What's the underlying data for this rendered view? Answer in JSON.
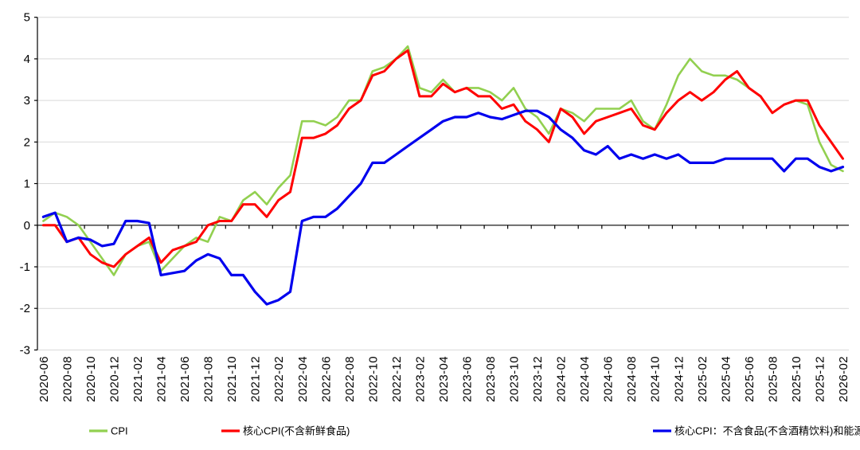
{
  "chart_data": {
    "type": "line",
    "title": "",
    "xlabel": "",
    "ylabel": "",
    "ylim": [
      -3,
      5
    ],
    "y_ticks": [
      5,
      4,
      3,
      2,
      1,
      0,
      -1,
      -2,
      -3
    ],
    "grid": true,
    "legend_position": "bottom",
    "grid_color": "#D9D9D9",
    "axis_color": "#000000",
    "categories": [
      "2020-06",
      "2020-07",
      "2020-08",
      "2020-09",
      "2020-10",
      "2020-11",
      "2020-12",
      "2021-01",
      "2021-02",
      "2021-03",
      "2021-04",
      "2021-05",
      "2021-06",
      "2021-07",
      "2021-08",
      "2021-09",
      "2021-10",
      "2021-11",
      "2021-12",
      "2022-01",
      "2022-02",
      "2022-03",
      "2022-04",
      "2022-05",
      "2022-06",
      "2022-07",
      "2022-08",
      "2022-09",
      "2022-10",
      "2022-11",
      "2022-12",
      "2023-01",
      "2023-02",
      "2023-03",
      "2023-04",
      "2023-05",
      "2023-06",
      "2023-07",
      "2023-08",
      "2023-09",
      "2023-10",
      "2023-11",
      "2023-12",
      "2024-01",
      "2024-02",
      "2024-03",
      "2024-04",
      "2024-05",
      "2024-06",
      "2024-07",
      "2024-08",
      "2024-09",
      "2024-10",
      "2024-11",
      "2024-12",
      "2025-01",
      "2025-02",
      "2025-03",
      "2025-04",
      "2025-05",
      "2025-06",
      "2025-07",
      "2025-08",
      "2025-09",
      "2025-10",
      "2025-11",
      "2025-12",
      "2026-01",
      "2026-02"
    ],
    "x_tick_labels": [
      "2020-06",
      "2020-08",
      "2020-10",
      "2020-12",
      "2021-02",
      "2021-04",
      "2021-06",
      "2021-08",
      "2021-10",
      "2021-12",
      "2022-02",
      "2022-04",
      "2022-06",
      "2022-08",
      "2022-10",
      "2022-12",
      "2023-02",
      "2023-04",
      "2023-06",
      "2023-08",
      "2023-10",
      "2023-12",
      "2024-02",
      "2024-04",
      "2024-06",
      "2024-08",
      "2024-10",
      "2024-12",
      "2025-02",
      "2025-04",
      "2025-06",
      "2025-08",
      "2025-10",
      "2025-12",
      "2026-02"
    ],
    "series": [
      {
        "name": "CPI",
        "color": "#92D050",
        "width": 2.6,
        "values": [
          0.1,
          0.3,
          0.2,
          0.0,
          -0.4,
          -0.8,
          -1.2,
          -0.7,
          -0.5,
          -0.4,
          -1.1,
          -0.8,
          -0.5,
          -0.3,
          -0.4,
          0.2,
          0.1,
          0.6,
          0.8,
          0.5,
          0.9,
          1.2,
          2.5,
          2.5,
          2.4,
          2.6,
          3.0,
          3.0,
          3.7,
          3.8,
          4.0,
          4.3,
          3.3,
          3.2,
          3.5,
          3.2,
          3.3,
          3.3,
          3.2,
          3.0,
          3.3,
          2.8,
          2.6,
          2.2,
          2.8,
          2.7,
          2.5,
          2.8,
          2.8,
          2.8,
          3.0,
          2.5,
          2.3,
          2.9,
          3.6,
          4.0,
          3.7,
          3.6,
          3.6,
          3.5,
          3.3,
          3.1,
          2.7,
          2.9,
          3.0,
          2.9,
          2.0,
          1.45,
          1.3
        ]
      },
      {
        "name": "核心CPI(不含新鲜食品)",
        "color": "#FF0000",
        "width": 3.0,
        "values": [
          0.0,
          0.0,
          -0.4,
          -0.3,
          -0.7,
          -0.9,
          -1.0,
          -0.7,
          -0.5,
          -0.3,
          -0.9,
          -0.6,
          -0.5,
          -0.4,
          0.0,
          0.1,
          0.1,
          0.5,
          0.5,
          0.2,
          0.6,
          0.8,
          2.1,
          2.1,
          2.2,
          2.4,
          2.8,
          3.0,
          3.6,
          3.7,
          4.0,
          4.2,
          3.1,
          3.1,
          3.4,
          3.2,
          3.3,
          3.1,
          3.1,
          2.8,
          2.9,
          2.5,
          2.3,
          2.0,
          2.8,
          2.6,
          2.2,
          2.5,
          2.6,
          2.7,
          2.8,
          2.4,
          2.3,
          2.7,
          3.0,
          3.2,
          3.0,
          3.2,
          3.5,
          3.7,
          3.3,
          3.1,
          2.7,
          2.9,
          3.0,
          3.0,
          2.4,
          2.0,
          1.6
        ]
      },
      {
        "name": "核心CPI：不含食品(不含酒精饮料)和能源",
        "color": "#0000EE",
        "width": 3.2,
        "values": [
          0.2,
          0.3,
          -0.4,
          -0.3,
          -0.35,
          -0.5,
          -0.45,
          0.1,
          0.1,
          0.05,
          -1.2,
          -1.15,
          -1.1,
          -0.85,
          -0.7,
          -0.8,
          -1.2,
          -1.2,
          -1.6,
          -1.9,
          -1.8,
          -1.6,
          0.1,
          0.2,
          0.2,
          0.4,
          0.7,
          1.0,
          1.5,
          1.5,
          1.7,
          1.9,
          2.1,
          2.3,
          2.5,
          2.6,
          2.6,
          2.7,
          2.6,
          2.55,
          2.65,
          2.75,
          2.75,
          2.6,
          2.3,
          2.1,
          1.8,
          1.7,
          1.9,
          1.6,
          1.7,
          1.6,
          1.7,
          1.6,
          1.7,
          1.5,
          1.5,
          1.5,
          1.6,
          1.6,
          1.6,
          1.6,
          1.6,
          1.3,
          1.6,
          1.6,
          1.4,
          1.3,
          1.4
        ]
      }
    ]
  }
}
